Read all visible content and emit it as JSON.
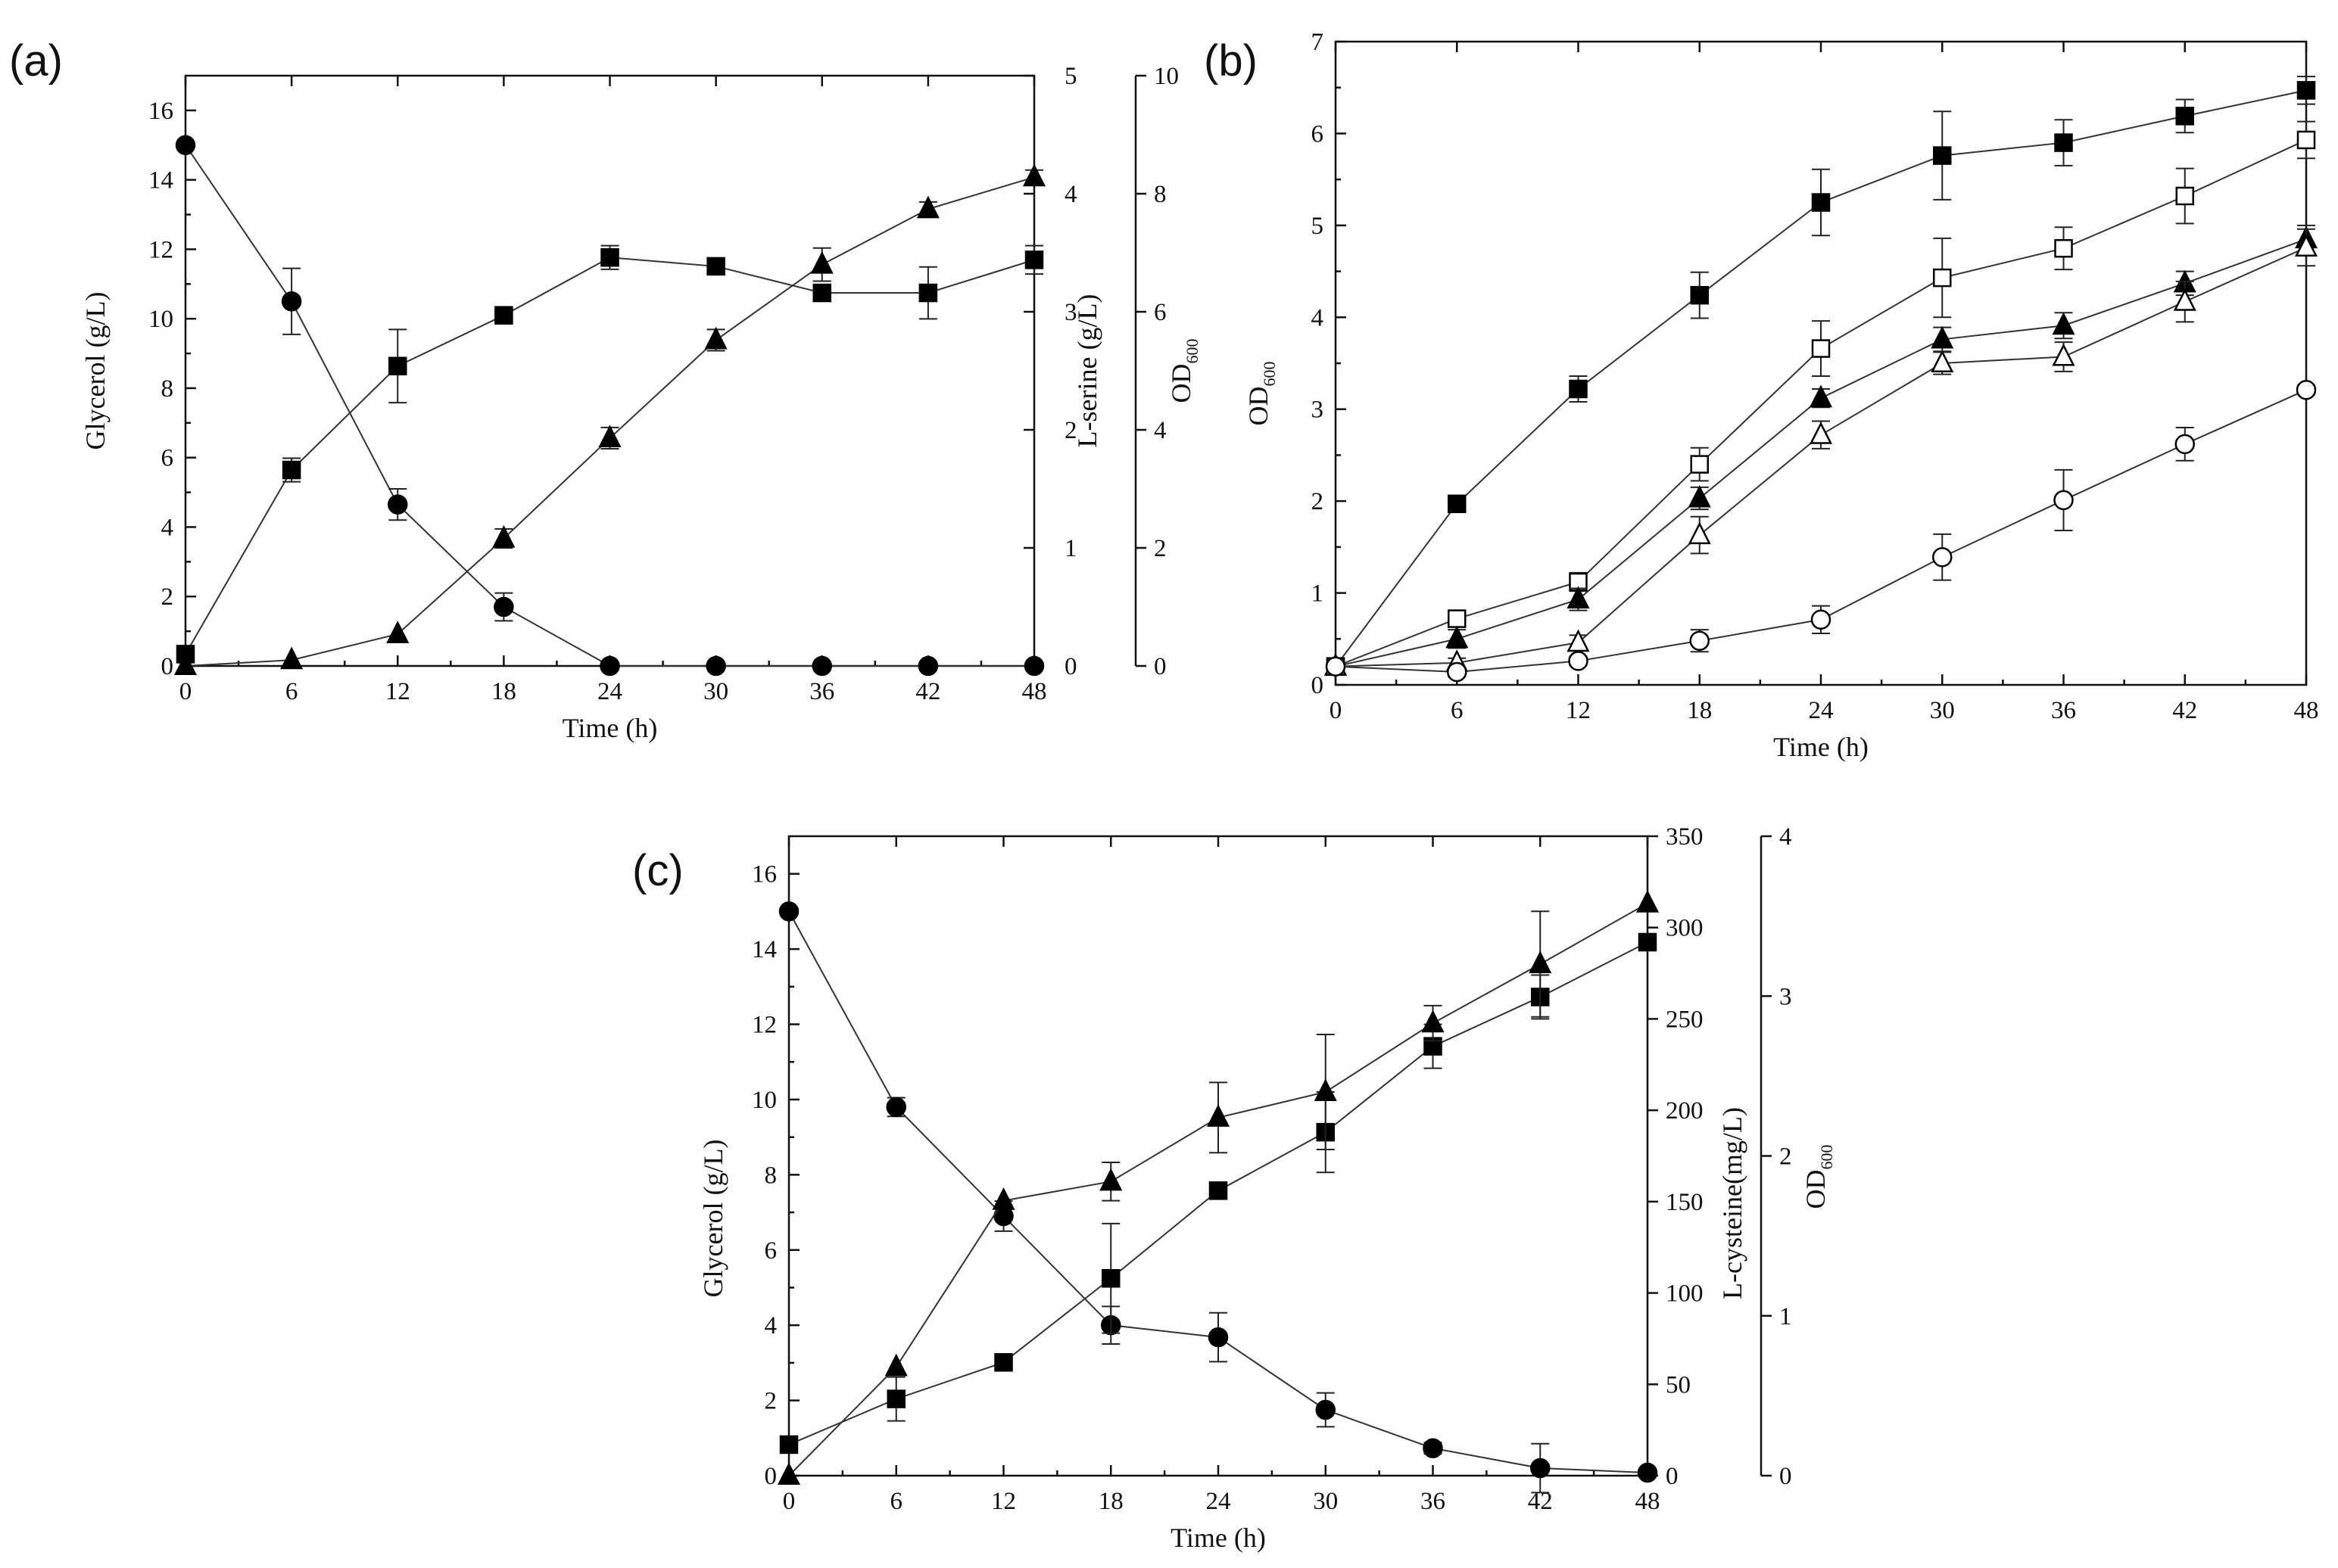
{
  "chart_data": [
    {
      "type": "line",
      "panel": "(a)",
      "xlabel": "Time (h)",
      "xlim": [
        0,
        48
      ],
      "xticks": [
        0,
        6,
        12,
        18,
        24,
        30,
        36,
        42,
        48
      ],
      "x": [
        0,
        6,
        12,
        18,
        24,
        30,
        36,
        42,
        48
      ],
      "axes": {
        "left": {
          "label": "Glycerol (g/L)",
          "lim": [
            0,
            17
          ],
          "ticks": [
            0,
            2,
            4,
            6,
            8,
            10,
            12,
            14,
            16
          ]
        },
        "right1": {
          "label": "L-serine (g/L)",
          "lim": [
            0,
            5
          ],
          "ticks": [
            0,
            1,
            2,
            3,
            4,
            5
          ]
        },
        "right2": {
          "label": "OD",
          "label_sub": "600",
          "lim": [
            0,
            10
          ],
          "ticks": [
            0,
            2,
            4,
            6,
            8,
            10
          ]
        }
      },
      "series": [
        {
          "name": "Glycerol",
          "axis": "left",
          "marker": "circle",
          "filled": true,
          "values": [
            15.0,
            10.5,
            4.65,
            1.7,
            0.0,
            0.0,
            0.0,
            0.0,
            0.0
          ],
          "errors": [
            0,
            0.95,
            0.45,
            0.4,
            0,
            0,
            0,
            0,
            0
          ]
        },
        {
          "name": "L-serine",
          "axis": "right1",
          "marker": "triangle",
          "filled": true,
          "values": [
            0.0,
            0.05,
            0.27,
            1.08,
            1.93,
            2.76,
            3.4,
            3.87,
            4.14
          ],
          "errors": [
            0,
            0,
            0,
            0.08,
            0.09,
            0.09,
            0.14,
            0.06,
            0.06
          ]
        },
        {
          "name": "OD600",
          "axis": "right2",
          "marker": "square",
          "filled": true,
          "values": [
            0.2,
            3.32,
            5.08,
            5.94,
            6.92,
            6.77,
            6.32,
            6.32,
            6.88
          ],
          "errors": [
            0,
            0.2,
            0.62,
            0.06,
            0.2,
            0.1,
            0.12,
            0.44,
            0.24
          ]
        }
      ]
    },
    {
      "type": "line",
      "panel": "(b)",
      "xlabel": "Time (h)",
      "xlim": [
        0,
        48
      ],
      "xticks": [
        0,
        6,
        12,
        18,
        24,
        30,
        36,
        42,
        48
      ],
      "x": [
        0,
        6,
        12,
        18,
        24,
        30,
        36,
        42,
        48
      ],
      "axes": {
        "left": {
          "label": "OD",
          "label_sub": "600",
          "lim": [
            0,
            7
          ],
          "ticks": [
            0,
            1,
            2,
            3,
            4,
            5,
            6,
            7
          ]
        }
      },
      "series": [
        {
          "name": "filled square",
          "axis": "left",
          "marker": "square",
          "filled": true,
          "values": [
            0.2,
            1.97,
            3.22,
            4.24,
            5.25,
            5.76,
            5.9,
            6.19,
            6.47
          ],
          "errors": [
            0,
            0.05,
            0.14,
            0.25,
            0.36,
            0.48,
            0.25,
            0.18,
            0.15
          ]
        },
        {
          "name": "open square",
          "axis": "left",
          "marker": "square",
          "filled": false,
          "values": [
            0.2,
            0.72,
            1.12,
            2.4,
            3.66,
            4.43,
            4.75,
            5.32,
            5.93
          ],
          "errors": [
            0,
            0.05,
            0.1,
            0.18,
            0.3,
            0.43,
            0.23,
            0.3,
            0.2
          ]
        },
        {
          "name": "filled triangle",
          "axis": "left",
          "marker": "triangle",
          "filled": true,
          "values": [
            0.2,
            0.5,
            0.93,
            2.03,
            3.12,
            3.76,
            3.91,
            4.37,
            4.85
          ],
          "errors": [
            0,
            0.1,
            0.12,
            0.12,
            0.1,
            0.13,
            0.14,
            0.13,
            0.15
          ]
        },
        {
          "name": "open triangle",
          "axis": "left",
          "marker": "triangle",
          "filled": false,
          "values": [
            0.2,
            0.24,
            0.46,
            1.63,
            2.72,
            3.5,
            3.57,
            4.17,
            4.76
          ],
          "errors": [
            0,
            0.05,
            0.08,
            0.2,
            0.15,
            0.12,
            0.16,
            0.22,
            0.2
          ]
        },
        {
          "name": "open circle",
          "axis": "left",
          "marker": "circle",
          "filled": false,
          "values": [
            0.2,
            0.14,
            0.26,
            0.48,
            0.71,
            1.39,
            2.01,
            2.62,
            3.21
          ],
          "errors": [
            0,
            0.05,
            0.05,
            0.12,
            0.15,
            0.25,
            0.33,
            0.18,
            0.05
          ]
        }
      ]
    },
    {
      "type": "line",
      "panel": "(c)",
      "xlabel": "Time (h)",
      "xlim": [
        0,
        48
      ],
      "xticks": [
        0,
        6,
        12,
        18,
        24,
        30,
        36,
        42,
        48
      ],
      "x": [
        0,
        6,
        12,
        18,
        24,
        30,
        36,
        42,
        48
      ],
      "axes": {
        "left": {
          "label": "Glycerol (g/L)",
          "lim": [
            0,
            17
          ],
          "ticks": [
            0,
            2,
            4,
            6,
            8,
            10,
            12,
            14,
            16
          ]
        },
        "right1": {
          "label": "L-cysteine(mg/L)",
          "lim": [
            0,
            350
          ],
          "ticks": [
            0,
            50,
            100,
            150,
            200,
            250,
            300,
            350
          ]
        },
        "right2": {
          "label": "OD",
          "label_sub": "600",
          "lim": [
            0,
            4
          ],
          "ticks": [
            0,
            1,
            2,
            3,
            4
          ]
        }
      },
      "series": [
        {
          "name": "Glycerol",
          "axis": "left",
          "marker": "circle",
          "filled": true,
          "values": [
            15.0,
            9.8,
            6.9,
            4.0,
            3.68,
            1.75,
            0.73,
            0.2,
            0.08
          ],
          "errors": [
            0,
            0.25,
            0.4,
            0.5,
            0.65,
            0.45,
            0.15,
            0.65,
            0.1
          ]
        },
        {
          "name": "L-cysteine",
          "axis": "right1",
          "marker": "square",
          "filled": true,
          "values": [
            17,
            42,
            62,
            108,
            156,
            188,
            235,
            262,
            292
          ],
          "errors": [
            0,
            12,
            0,
            30,
            0,
            22,
            12,
            12,
            0
          ]
        },
        {
          "name": "OD600",
          "axis": "right2",
          "marker": "triangle",
          "filled": true,
          "values": [
            0.0,
            0.68,
            1.72,
            1.84,
            2.24,
            2.4,
            2.83,
            3.2,
            3.58
          ],
          "errors": [
            0,
            0,
            0,
            0.12,
            0.22,
            0.36,
            0.11,
            0.33,
            0
          ]
        }
      ]
    }
  ]
}
